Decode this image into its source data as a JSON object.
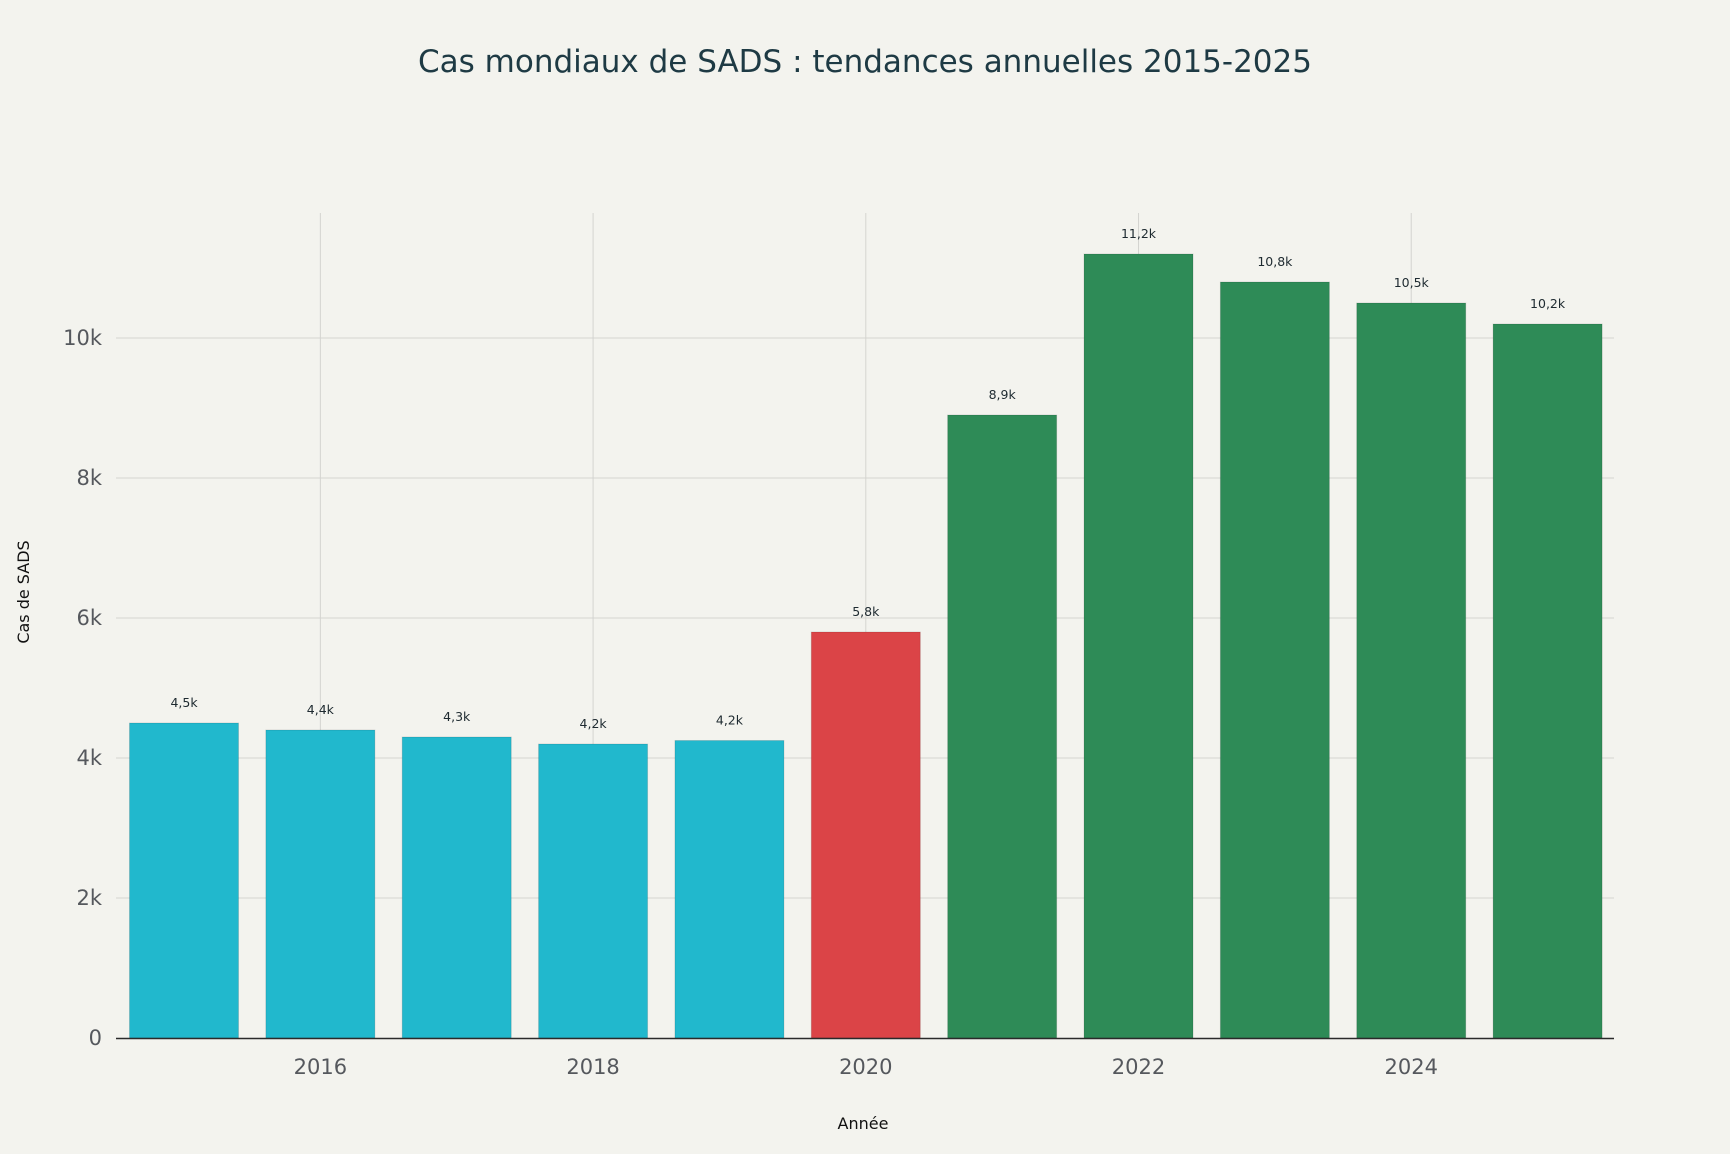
{
  "chart_data": {
    "type": "bar",
    "title": "Cas mondiaux de SADS : tendances annuelles 2015-2025",
    "xlabel": "Année",
    "ylabel": "Cas de SADS",
    "x": [
      2015,
      2016,
      2017,
      2018,
      2019,
      2020,
      2021,
      2022,
      2023,
      2024,
      2025
    ],
    "values": [
      4500,
      4400,
      4300,
      4200,
      4250,
      5800,
      8900,
      11200,
      10800,
      10500,
      10200
    ],
    "data_labels": [
      "4,5k",
      "4,4k",
      "4,3k",
      "4,2k",
      "4,2k",
      "5,8k",
      "8,9k",
      "11,2k",
      "10,8k",
      "10,5k",
      "10,2k"
    ],
    "colors": [
      "#21b8cd",
      "#21b8cd",
      "#21b8cd",
      "#21b8cd",
      "#21b8cd",
      "#db4447",
      "#2e8b57",
      "#2e8b57",
      "#2e8b57",
      "#2e8b57",
      "#2e8b57"
    ],
    "ylim": [
      0,
      11800
    ],
    "yticks": [
      0,
      2000,
      4000,
      6000,
      8000,
      10000
    ],
    "ytick_labels": [
      "0",
      "2k",
      "4k",
      "6k",
      "8k",
      "10k"
    ],
    "xticks": [
      2016,
      2018,
      2020,
      2022,
      2024
    ],
    "xtick_labels": [
      "2016",
      "2018",
      "2020",
      "2022",
      "2024"
    ],
    "grid": true,
    "legend": false
  }
}
